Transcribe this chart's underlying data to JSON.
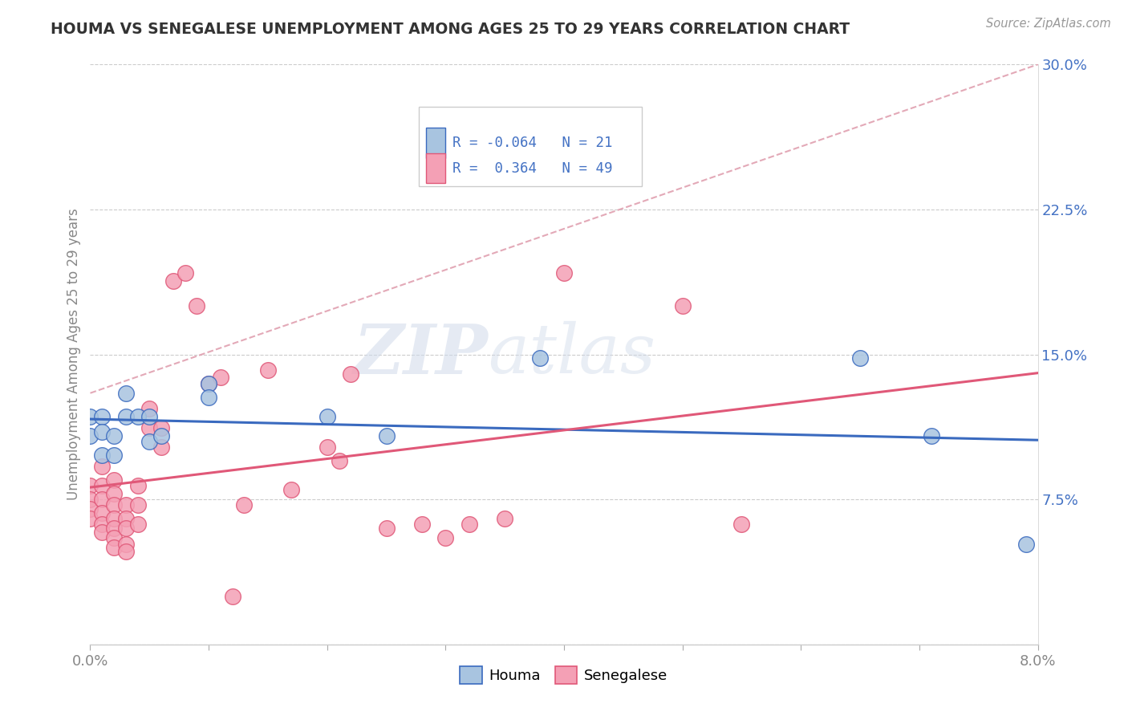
{
  "title": "HOUMA VS SENEGALESE UNEMPLOYMENT AMONG AGES 25 TO 29 YEARS CORRELATION CHART",
  "source": "Source: ZipAtlas.com",
  "ylabel": "Unemployment Among Ages 25 to 29 years",
  "xlim": [
    0.0,
    0.08
  ],
  "ylim": [
    0.0,
    0.3
  ],
  "xticks": [
    0.0,
    0.01,
    0.02,
    0.03,
    0.04,
    0.05,
    0.06,
    0.07,
    0.08
  ],
  "xticklabels": [
    "0.0%",
    "",
    "",
    "",
    "",
    "",
    "",
    "",
    "8.0%"
  ],
  "yticks": [
    0.0,
    0.075,
    0.15,
    0.225,
    0.3
  ],
  "yticklabels": [
    "",
    "7.5%",
    "15.0%",
    "22.5%",
    "30.0%"
  ],
  "legend_r_houma": "-0.064",
  "legend_n_houma": "21",
  "legend_r_senegalese": "0.364",
  "legend_n_senegalese": "49",
  "houma_color": "#a8c4e0",
  "senegalese_color": "#f4a0b5",
  "houma_line_color": "#3a6abf",
  "senegalese_line_color": "#e05878",
  "trend_line_color": "#e0a0b0",
  "watermark_zip": "ZIP",
  "watermark_atlas": "atlas",
  "houma_scatter": [
    [
      0.0,
      0.118
    ],
    [
      0.0,
      0.108
    ],
    [
      0.001,
      0.098
    ],
    [
      0.001,
      0.118
    ],
    [
      0.001,
      0.11
    ],
    [
      0.002,
      0.098
    ],
    [
      0.002,
      0.108
    ],
    [
      0.003,
      0.13
    ],
    [
      0.003,
      0.118
    ],
    [
      0.004,
      0.118
    ],
    [
      0.005,
      0.118
    ],
    [
      0.005,
      0.105
    ],
    [
      0.006,
      0.108
    ],
    [
      0.01,
      0.135
    ],
    [
      0.01,
      0.128
    ],
    [
      0.02,
      0.118
    ],
    [
      0.025,
      0.108
    ],
    [
      0.038,
      0.148
    ],
    [
      0.065,
      0.148
    ],
    [
      0.071,
      0.108
    ],
    [
      0.079,
      0.052
    ]
  ],
  "senegalese_scatter": [
    [
      0.0,
      0.082
    ],
    [
      0.0,
      0.075
    ],
    [
      0.0,
      0.07
    ],
    [
      0.0,
      0.065
    ],
    [
      0.001,
      0.092
    ],
    [
      0.001,
      0.082
    ],
    [
      0.001,
      0.075
    ],
    [
      0.001,
      0.068
    ],
    [
      0.001,
      0.062
    ],
    [
      0.001,
      0.058
    ],
    [
      0.002,
      0.085
    ],
    [
      0.002,
      0.078
    ],
    [
      0.002,
      0.072
    ],
    [
      0.002,
      0.065
    ],
    [
      0.002,
      0.06
    ],
    [
      0.002,
      0.055
    ],
    [
      0.002,
      0.05
    ],
    [
      0.003,
      0.072
    ],
    [
      0.003,
      0.065
    ],
    [
      0.003,
      0.06
    ],
    [
      0.003,
      0.052
    ],
    [
      0.003,
      0.048
    ],
    [
      0.004,
      0.082
    ],
    [
      0.004,
      0.072
    ],
    [
      0.004,
      0.062
    ],
    [
      0.005,
      0.122
    ],
    [
      0.005,
      0.112
    ],
    [
      0.006,
      0.112
    ],
    [
      0.006,
      0.102
    ],
    [
      0.007,
      0.188
    ],
    [
      0.008,
      0.192
    ],
    [
      0.009,
      0.175
    ],
    [
      0.01,
      0.135
    ],
    [
      0.011,
      0.138
    ],
    [
      0.012,
      0.025
    ],
    [
      0.013,
      0.072
    ],
    [
      0.015,
      0.142
    ],
    [
      0.017,
      0.08
    ],
    [
      0.02,
      0.102
    ],
    [
      0.021,
      0.095
    ],
    [
      0.022,
      0.14
    ],
    [
      0.025,
      0.06
    ],
    [
      0.028,
      0.062
    ],
    [
      0.03,
      0.055
    ],
    [
      0.032,
      0.062
    ],
    [
      0.035,
      0.065
    ],
    [
      0.04,
      0.192
    ],
    [
      0.05,
      0.175
    ],
    [
      0.055,
      0.062
    ]
  ]
}
